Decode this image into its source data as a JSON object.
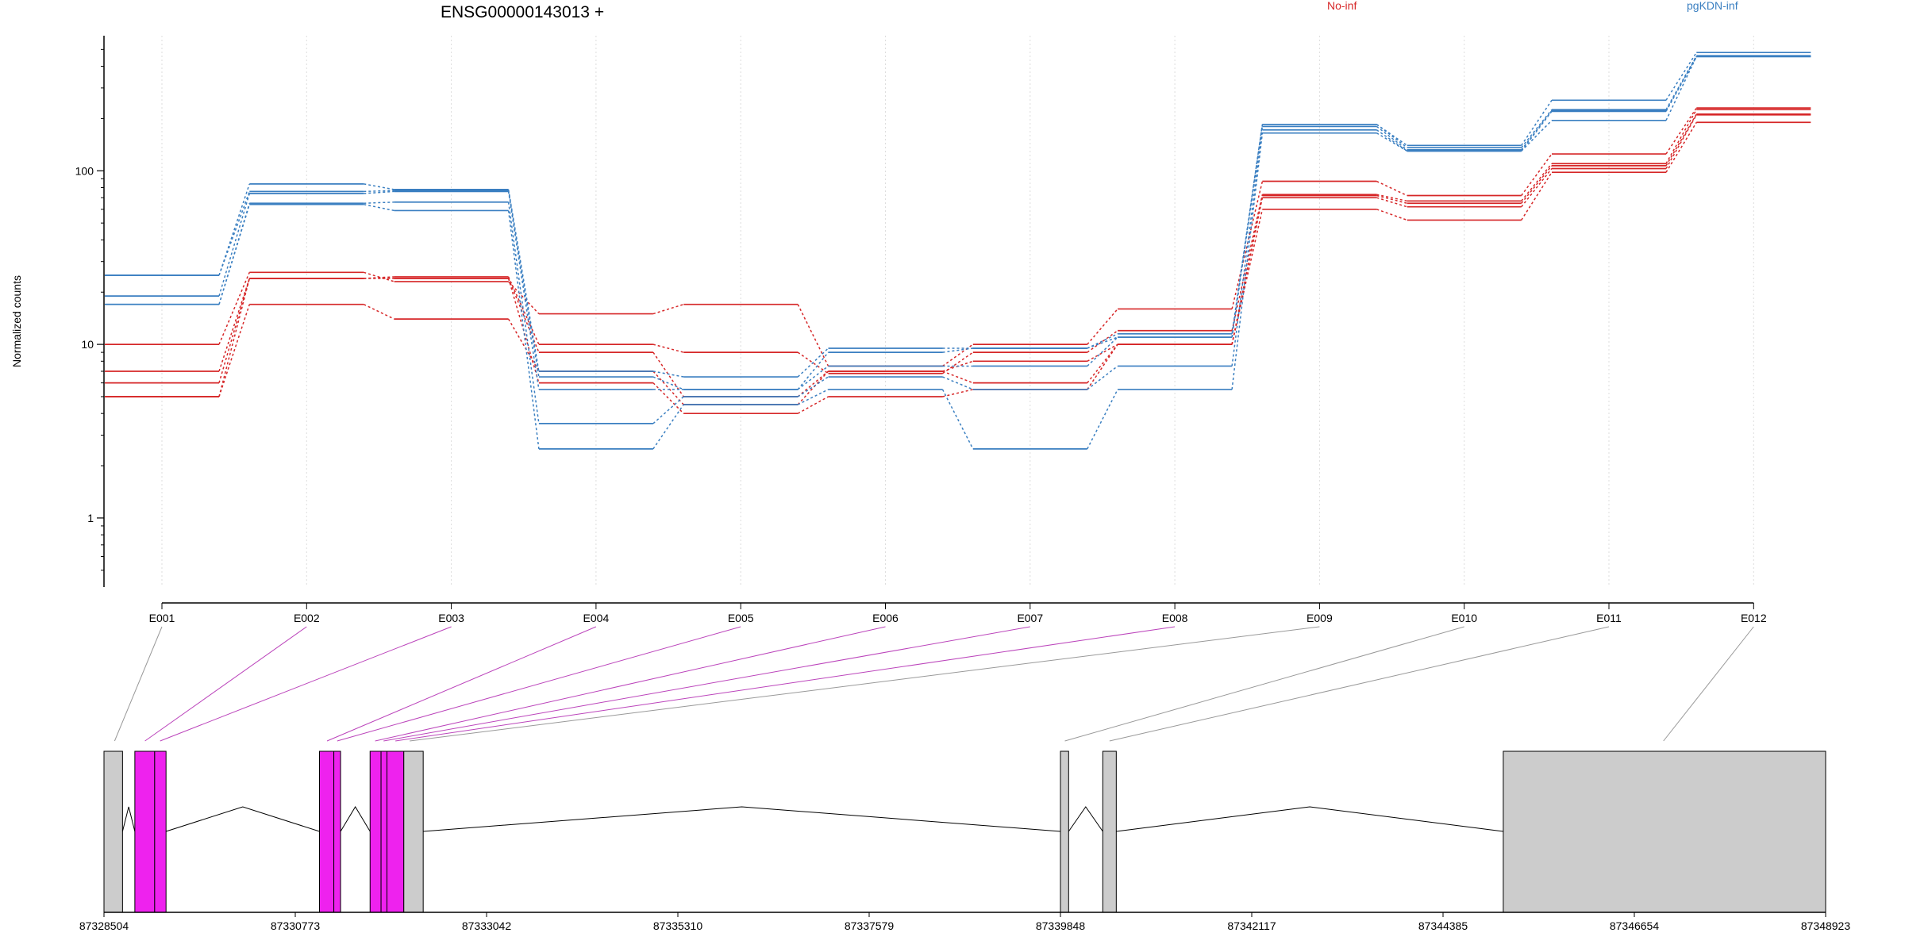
{
  "chart_data": {
    "type": "line",
    "title": "ENSG00000143013 +",
    "xlabel": "",
    "ylabel": "Normalized counts",
    "y_scale": "log",
    "ylim": [
      0.4,
      600
    ],
    "yticks": [
      1,
      10,
      100
    ],
    "ytick_labels": [
      "1",
      "10",
      "100"
    ],
    "categories": [
      "E001",
      "E002",
      "E003",
      "E004",
      "E005",
      "E006",
      "E007",
      "E008",
      "E009",
      "E010",
      "E011",
      "E012"
    ],
    "grid": "vertical dotted at each exon",
    "legend": [
      {
        "name": "No-inf",
        "color": "#d62728"
      },
      {
        "name": "pgKDN-inf",
        "color": "#3a7fc1"
      }
    ],
    "groups": [
      {
        "name": "No-inf",
        "color": "#d62728",
        "samples": [
          [
            10,
            26,
            23,
            15,
            17,
            7.5,
            10,
            16,
            87,
            72,
            125,
            230
          ],
          [
            7,
            24,
            24.5,
            10,
            9,
            6.8,
            9,
            12,
            73,
            67,
            110,
            225
          ],
          [
            6,
            24,
            24,
            9,
            5,
            7,
            8,
            10,
            72,
            65,
            107,
            212
          ],
          [
            5,
            17,
            14,
            7,
            4.5,
            7,
            6,
            10,
            70,
            62,
            103,
            210
          ],
          [
            5,
            24,
            24,
            6,
            4,
            5,
            5.5,
            10,
            60,
            52,
            98,
            190
          ]
        ]
      },
      {
        "name": "pgKDN-inf",
        "color": "#3a7fc1",
        "samples": [
          [
            25,
            84,
            78,
            7,
            6.5,
            9.5,
            9.5,
            11.5,
            185,
            140,
            255,
            480
          ],
          [
            25,
            76,
            77,
            6.5,
            5.5,
            9,
            9.5,
            11,
            185,
            136,
            225,
            460
          ],
          [
            19,
            74,
            76,
            5.5,
            5.5,
            7.5,
            7.5,
            11,
            180,
            132,
            222,
            455
          ],
          [
            17,
            65,
            66,
            3.5,
            5,
            6.5,
            5.5,
            7.5,
            172,
            130,
            220,
            455
          ],
          [
            17,
            64,
            59,
            2.5,
            4.5,
            5.5,
            2.5,
            5.5,
            165,
            130,
            195,
            455
          ]
        ]
      }
    ],
    "gene_model": {
      "xlim": [
        87328504,
        87348923
      ],
      "tick_labels": [
        "87328504",
        "87330773",
        "87333042",
        "87335310",
        "87337579",
        "87339848",
        "87342117",
        "87344385",
        "87346654",
        "87348923"
      ],
      "exons": [
        {
          "start": 87328504,
          "end": 87328724,
          "highlighted": false
        },
        {
          "start": 87328870,
          "end": 87329105,
          "highlighted": true
        },
        {
          "start": 87329105,
          "end": 87329240,
          "highlighted": true
        },
        {
          "start": 87331060,
          "end": 87331230,
          "highlighted": true
        },
        {
          "start": 87331230,
          "end": 87331310,
          "highlighted": true
        },
        {
          "start": 87331660,
          "end": 87331790,
          "highlighted": true
        },
        {
          "start": 87331790,
          "end": 87331860,
          "highlighted": true
        },
        {
          "start": 87331860,
          "end": 87332060,
          "highlighted": true
        },
        {
          "start": 87332060,
          "end": 87332290,
          "highlighted": false
        },
        {
          "start": 87339848,
          "end": 87339945,
          "highlighted": false
        },
        {
          "start": 87340350,
          "end": 87340510,
          "highlighted": false
        },
        {
          "start": 87345100,
          "end": 87348923,
          "highlighted": false
        }
      ],
      "introns": [
        [
          87328724,
          87328870
        ],
        [
          87329240,
          87331060
        ],
        [
          87331310,
          87331660
        ],
        [
          87332290,
          87339848
        ],
        [
          87339945,
          87340350
        ],
        [
          87340510,
          87345100
        ]
      ],
      "connectors": [
        {
          "exon": "E001",
          "position": 87328630,
          "highlighted": false
        },
        {
          "exon": "E002",
          "position": 87328990,
          "highlighted": true
        },
        {
          "exon": "E003",
          "position": 87329170,
          "highlighted": true
        },
        {
          "exon": "E004",
          "position": 87331150,
          "highlighted": true
        },
        {
          "exon": "E005",
          "position": 87331270,
          "highlighted": true
        },
        {
          "exon": "E006",
          "position": 87331720,
          "highlighted": true
        },
        {
          "exon": "E007",
          "position": 87331820,
          "highlighted": true
        },
        {
          "exon": "E008",
          "position": 87331960,
          "highlighted": true
        },
        {
          "exon": "E009",
          "position": 87332130,
          "highlighted": false
        },
        {
          "exon": "E010",
          "position": 87339900,
          "highlighted": false
        },
        {
          "exon": "E011",
          "position": 87340430,
          "highlighted": false
        },
        {
          "exon": "E012",
          "position": 87347000,
          "highlighted": false
        }
      ],
      "colors": {
        "exon": "#cccccc",
        "highlight": "#ee22ee",
        "connector": "#999999",
        "highlight_connector": "#bb44bb"
      }
    }
  }
}
